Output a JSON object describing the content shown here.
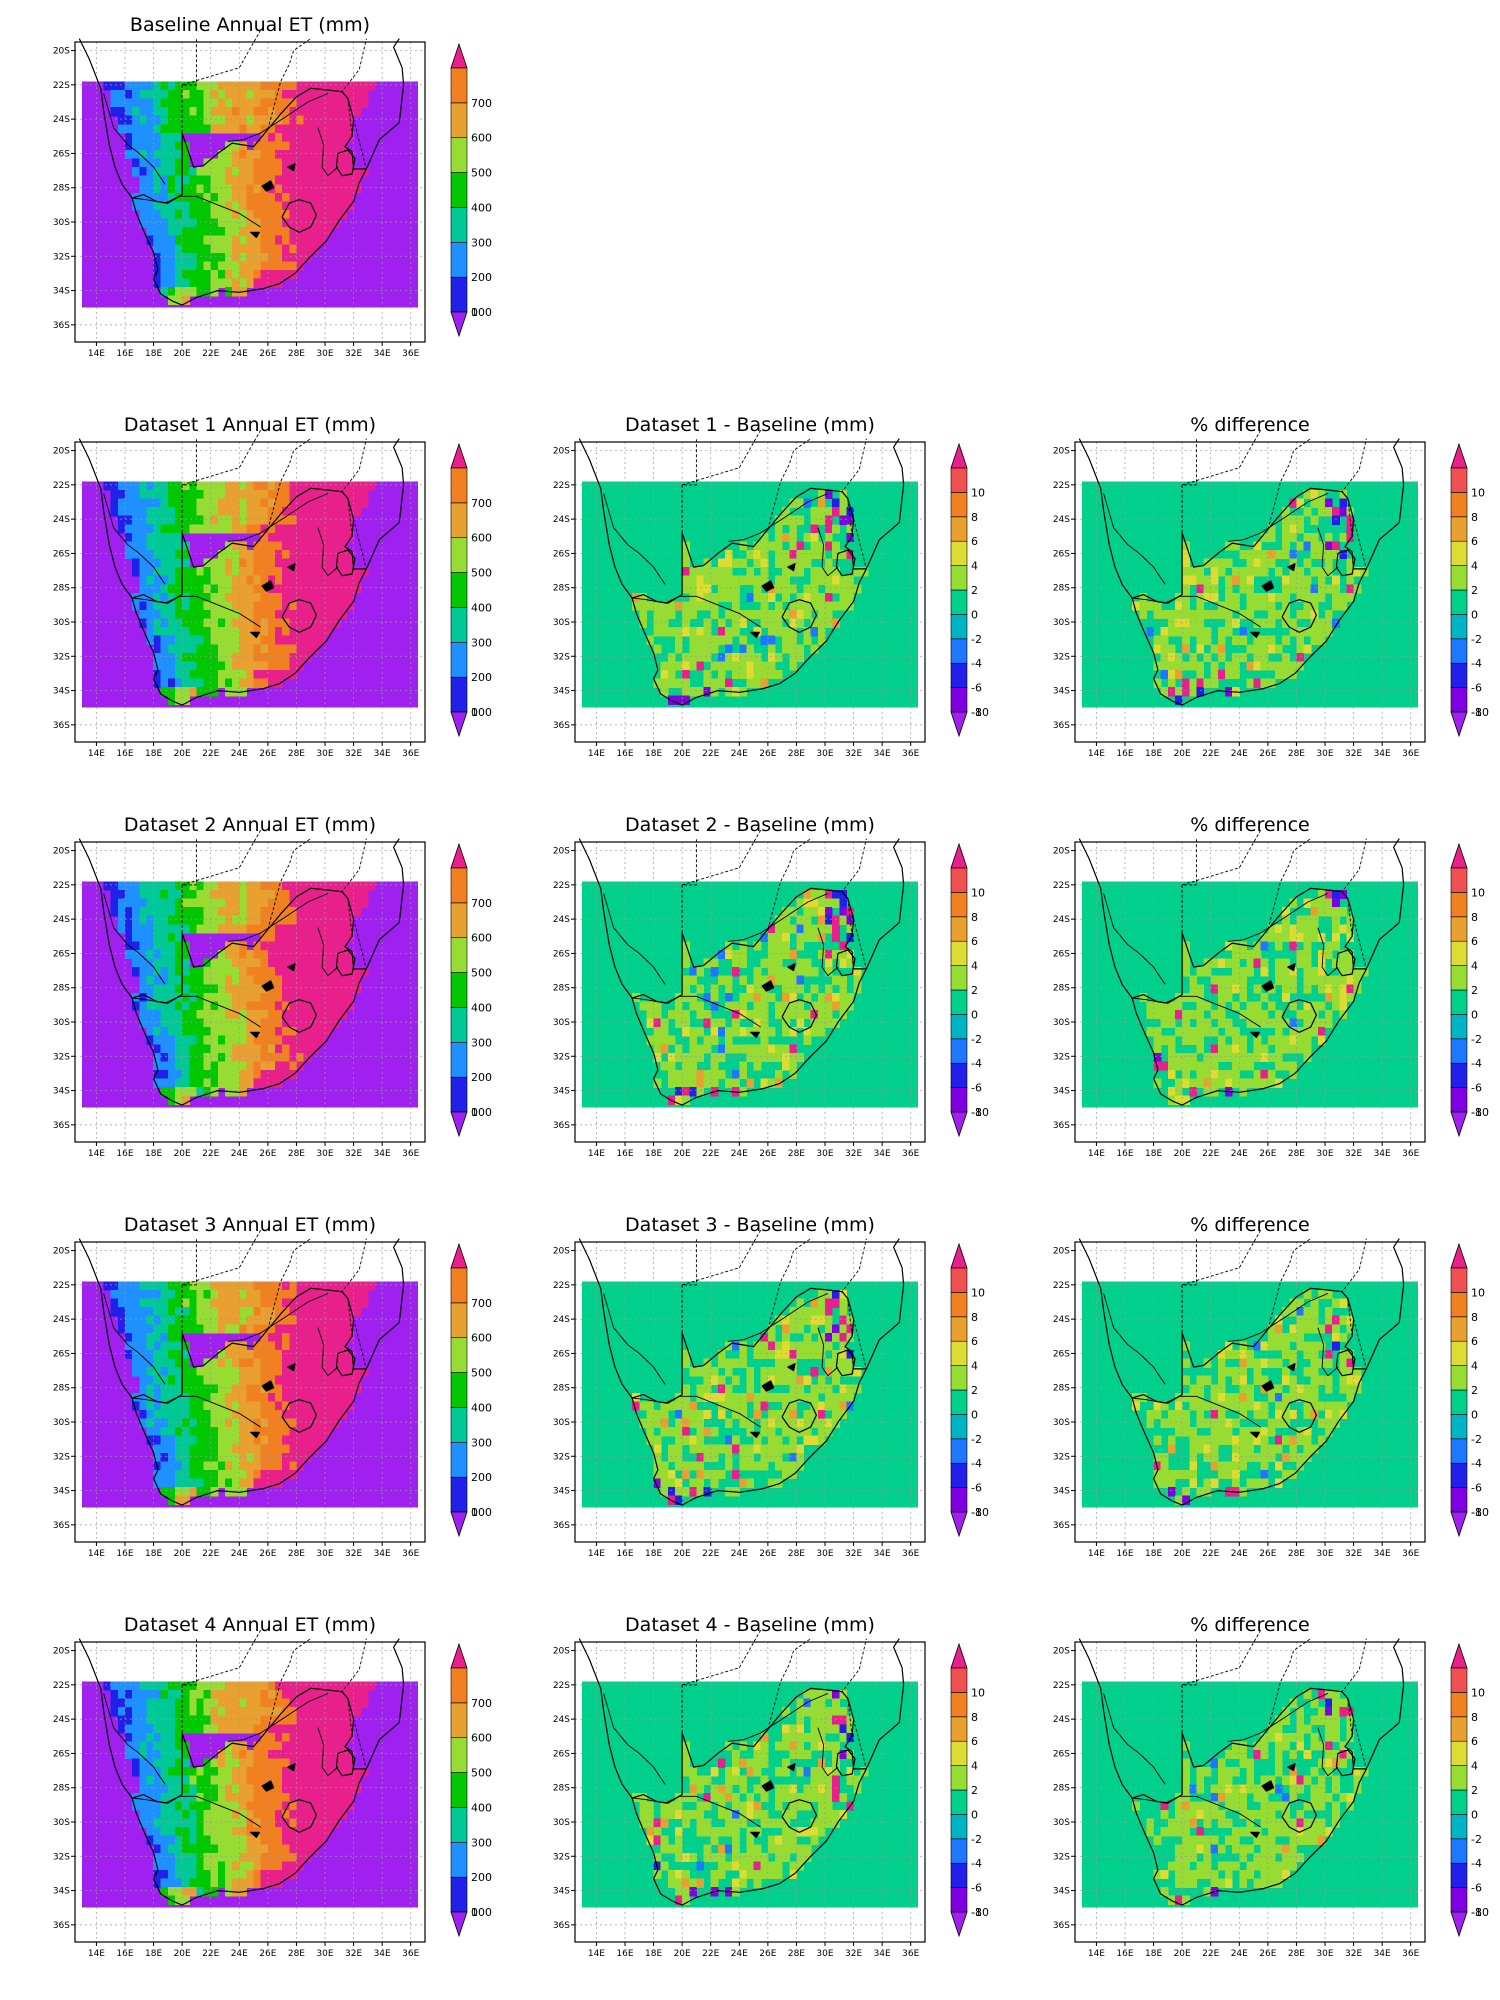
{
  "figure": {
    "lon_ticks": [
      "14E",
      "16E",
      "18E",
      "20E",
      "22E",
      "24E",
      "26E",
      "28E",
      "30E",
      "32E",
      "34E",
      "36E"
    ],
    "lat_ticks": [
      "20S",
      "22S",
      "24S",
      "26S",
      "28S",
      "30S",
      "32S",
      "34S",
      "36S"
    ],
    "colorbars": {
      "et": {
        "labels": [
          "0",
          "100",
          "200",
          "300",
          "400",
          "500",
          "600",
          "700"
        ],
        "colors": [
          "#a020f0",
          "#2020e8",
          "#1e90ff",
          "#00c896",
          "#00c800",
          "#96dc32",
          "#e8a030",
          "#f08020",
          "#e8208c"
        ]
      },
      "diff": {
        "labels": [
          "-10",
          "-8",
          "-6",
          "-4",
          "-2",
          "0",
          "2",
          "4",
          "6",
          "8",
          "10"
        ],
        "colors": [
          "#a020f0",
          "#8000e0",
          "#2020e8",
          "#1e78ff",
          "#00b4c8",
          "#00d08c",
          "#96dc32",
          "#dcdc32",
          "#e8a030",
          "#f08020",
          "#f05050",
          "#e8208c"
        ]
      }
    },
    "panels": [
      {
        "id": "baseline",
        "title": "Baseline Annual ET (mm)",
        "kind": "et"
      },
      {
        "id": "ds1-et",
        "title": "Dataset 1 Annual ET (mm)",
        "kind": "et"
      },
      {
        "id": "ds1-diff",
        "title": "Dataset 1 - Baseline (mm)",
        "kind": "diff"
      },
      {
        "id": "ds1-pct",
        "title": "% difference",
        "kind": "diff"
      },
      {
        "id": "ds2-et",
        "title": "Dataset 2 Annual ET (mm)",
        "kind": "et"
      },
      {
        "id": "ds2-diff",
        "title": "Dataset 2 - Baseline (mm)",
        "kind": "diff"
      },
      {
        "id": "ds2-pct",
        "title": "% difference",
        "kind": "diff"
      },
      {
        "id": "ds3-et",
        "title": "Dataset 3 Annual ET (mm)",
        "kind": "et"
      },
      {
        "id": "ds3-diff",
        "title": "Dataset 3 - Baseline (mm)",
        "kind": "diff"
      },
      {
        "id": "ds3-pct",
        "title": "% difference",
        "kind": "diff"
      },
      {
        "id": "ds4-et",
        "title": "Dataset 4 Annual ET (mm)",
        "kind": "et"
      },
      {
        "id": "ds4-diff",
        "title": "Dataset 4 - Baseline (mm)",
        "kind": "diff"
      },
      {
        "id": "ds4-pct",
        "title": "% difference",
        "kind": "diff"
      }
    ]
  }
}
